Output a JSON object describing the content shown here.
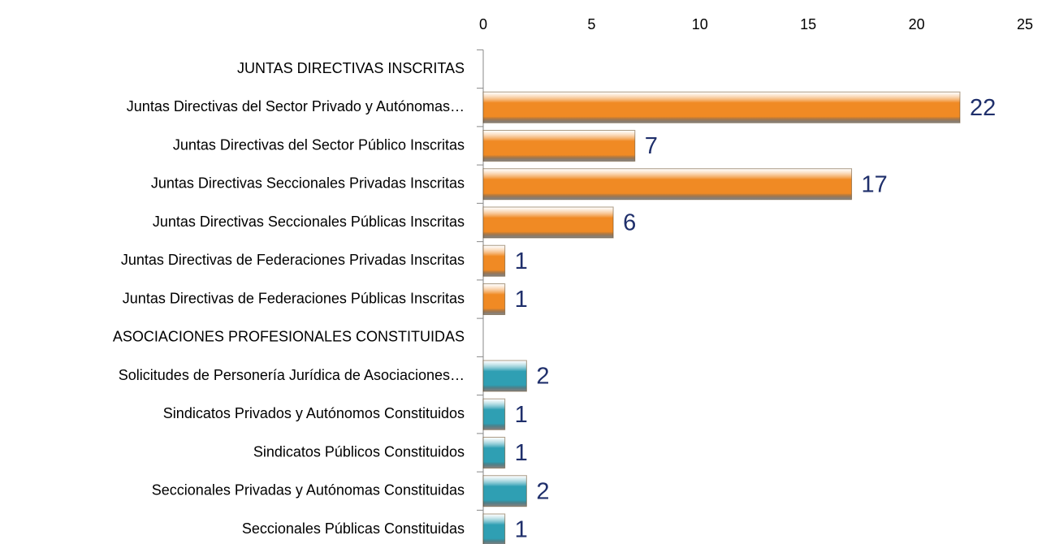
{
  "chart_data": {
    "type": "bar",
    "orientation": "horizontal",
    "categories": [
      "JUNTAS DIRECTIVAS INSCRITAS",
      "Juntas Directivas del Sector Privado y Autónomas…",
      "Juntas Directivas del Sector Público Inscritas",
      "Juntas Directivas Seccionales Privadas Inscritas",
      "Juntas Directivas Seccionales Públicas Inscritas",
      "Juntas Directivas de Federaciones Privadas Inscritas",
      "Juntas Directivas de Federaciones Públicas Inscritas",
      "ASOCIACIONES PROFESIONALES  CONSTITUIDAS",
      "Solicitudes de Personería Jurídica de Asociaciones…",
      "Sindicatos Privados y Autónomos Constituidos",
      "Sindicatos Públicos Constituidos",
      "Seccionales Privadas y Autónomas Constituidas",
      "Seccionales Públicas Constituidas"
    ],
    "values": [
      null,
      22,
      7,
      17,
      6,
      1,
      1,
      null,
      2,
      1,
      1,
      2,
      1
    ],
    "colors": [
      null,
      "#f08a24",
      "#f08a24",
      "#f08a24",
      "#f08a24",
      "#f08a24",
      "#f08a24",
      null,
      "#2f9fb3",
      "#2f9fb3",
      "#2f9fb3",
      "#2f9fb3",
      "#2f9fb3"
    ],
    "xlim": [
      0,
      25
    ],
    "xticks": [
      0,
      5,
      10,
      15,
      20,
      25
    ],
    "grid": false,
    "data_labels": true
  }
}
